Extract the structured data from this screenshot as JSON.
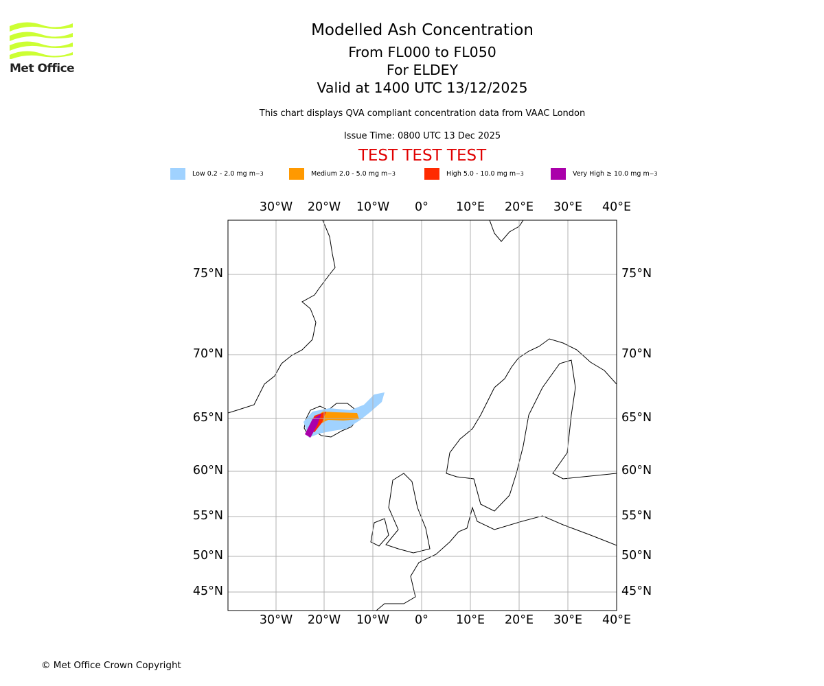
{
  "logo": {
    "text": "Met Office",
    "color": "#ccff33"
  },
  "header": {
    "title": "Modelled Ash Concentration",
    "levels": "From FL000 to FL050",
    "location": "For ELDEY",
    "valid": "Valid at 1400 UTC 13/12/2025",
    "subtitle": "This chart displays QVA compliant concentration data from VAAC London",
    "issue_time": "Issue Time: 0800 UTC 13 Dec 2025",
    "test_banner": "TEST TEST TEST"
  },
  "legend": [
    {
      "label": "Low 0.2 - 2.0 mg m",
      "sup": "−3",
      "color": "#a0d2ff"
    },
    {
      "label": "Medium 2.0 - 5.0 mg m",
      "sup": "−3",
      "color": "#ff9900"
    },
    {
      "label": "High 5.0 - 10.0 mg m",
      "sup": "−3",
      "color": "#ff2a00"
    },
    {
      "label": "Very High ≥ 10.0 mg m",
      "sup": "−3",
      "color": "#aa00aa"
    }
  ],
  "map": {
    "lon_labels": [
      "30°W",
      "20°W",
      "10°W",
      "0°",
      "10°E",
      "20°E",
      "30°E",
      "40°E"
    ],
    "lat_labels": [
      "75°N",
      "70°N",
      "65°N",
      "60°N",
      "55°N",
      "50°N",
      "45°N"
    ]
  },
  "footer": {
    "copyright": "© Met Office Crown Copyright"
  }
}
